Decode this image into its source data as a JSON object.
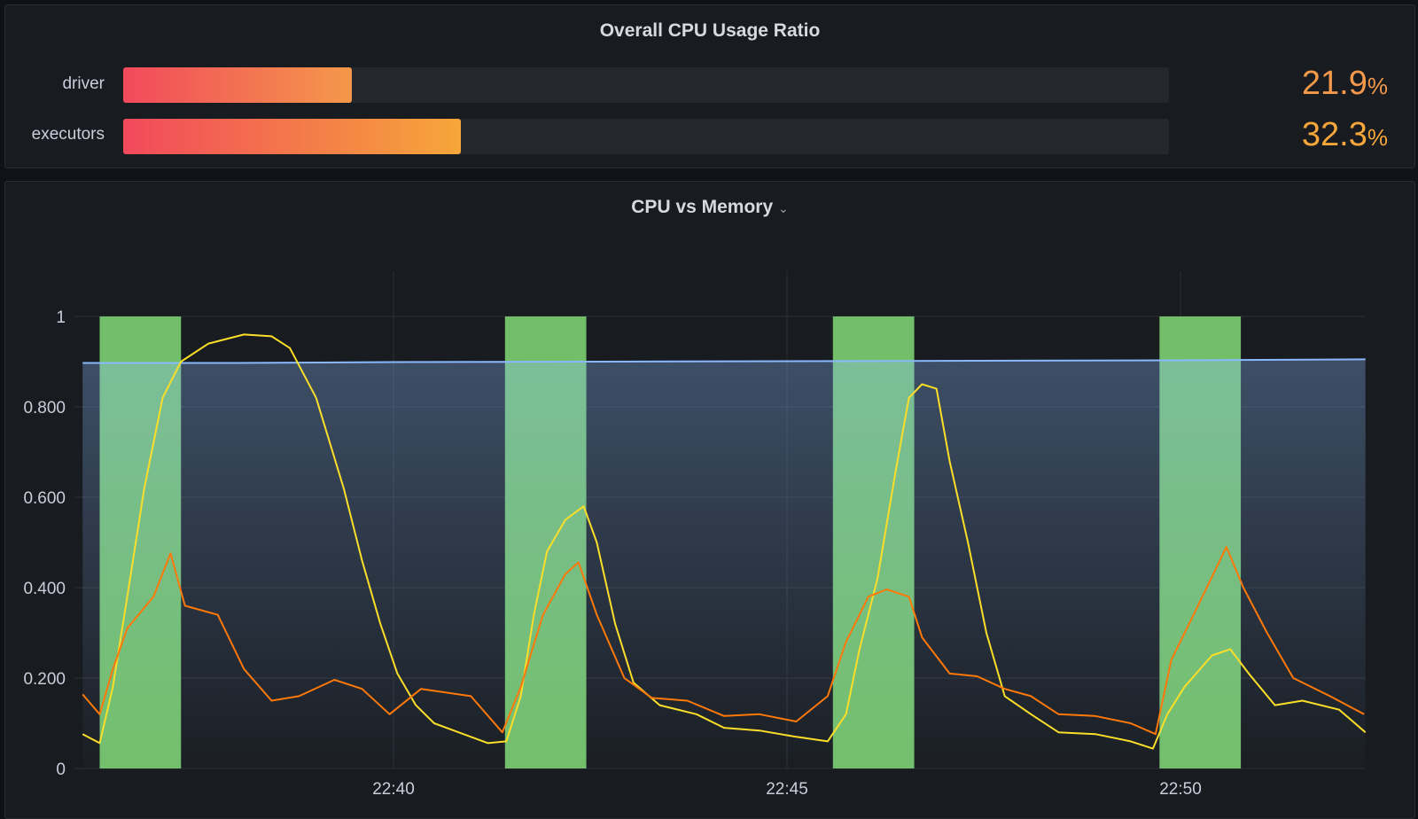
{
  "top_panel": {
    "title": "Overall CPU Usage Ratio",
    "bars": [
      {
        "label": "driver",
        "value": "21.9",
        "unit": "%",
        "fraction": 0.219,
        "color": "#f4984a"
      },
      {
        "label": "executors",
        "value": "32.3",
        "unit": "%",
        "fraction": 0.323,
        "color": "#f6a63a"
      }
    ],
    "gradient_start": "#f2495c"
  },
  "chart_panel": {
    "title": "CPU vs Memory",
    "menu_icon": "chevron-down-icon"
  },
  "chart_data": {
    "type": "line",
    "title": "CPU vs Memory",
    "ylim": [
      0,
      1
    ],
    "yticks": [
      "0",
      "0.200",
      "0.400",
      "0.600",
      "0.800",
      "1"
    ],
    "xticks": [
      "22:40",
      "22:45",
      "22:50"
    ],
    "xlim": [
      "22:36:03",
      "22:52:21"
    ],
    "grid": true,
    "legend": "none",
    "time_regions": [
      {
        "from": "22:36:16",
        "to": "22:37:18",
        "color": "#73bf69"
      },
      {
        "from": "22:41:25",
        "to": "22:42:27",
        "color": "#73bf69"
      },
      {
        "from": "22:45:35",
        "to": "22:46:37",
        "color": "#73bf69"
      },
      {
        "from": "22:49:44",
        "to": "22:50:46",
        "color": "#73bf69"
      }
    ],
    "series": [
      {
        "color": "#8ab8ff",
        "fill": true,
        "points": [
          [
            "22:36:03",
            0.897
          ],
          [
            "22:38:00",
            0.897
          ],
          [
            "22:40:00",
            0.899
          ],
          [
            "22:45:00",
            0.901
          ],
          [
            "22:50:00",
            0.903
          ],
          [
            "22:52:21",
            0.905
          ]
        ]
      },
      {
        "color": "#fade2a",
        "points": [
          [
            "22:36:03",
            0.076
          ],
          [
            "22:36:16",
            0.056
          ],
          [
            "22:36:26",
            0.18
          ],
          [
            "22:36:37",
            0.38
          ],
          [
            "22:36:50",
            0.62
          ],
          [
            "22:37:04",
            0.82
          ],
          [
            "22:37:18",
            0.9
          ],
          [
            "22:37:39",
            0.94
          ],
          [
            "22:38:06",
            0.96
          ],
          [
            "22:38:27",
            0.956
          ],
          [
            "22:38:41",
            0.93
          ],
          [
            "22:39:01",
            0.82
          ],
          [
            "22:39:22",
            0.62
          ],
          [
            "22:39:36",
            0.46
          ],
          [
            "22:39:50",
            0.32
          ],
          [
            "22:40:03",
            0.21
          ],
          [
            "22:40:17",
            0.14
          ],
          [
            "22:40:31",
            0.1
          ],
          [
            "22:40:59",
            0.07
          ],
          [
            "22:41:12",
            0.056
          ],
          [
            "22:41:26",
            0.06
          ],
          [
            "22:41:37",
            0.16
          ],
          [
            "22:41:47",
            0.34
          ],
          [
            "22:41:57",
            0.48
          ],
          [
            "22:42:11",
            0.55
          ],
          [
            "22:42:25",
            0.58
          ],
          [
            "22:42:35",
            0.5
          ],
          [
            "22:42:49",
            0.32
          ],
          [
            "22:43:03",
            0.19
          ],
          [
            "22:43:23",
            0.14
          ],
          [
            "22:43:51",
            0.12
          ],
          [
            "22:44:12",
            0.09
          ],
          [
            "22:44:39",
            0.084
          ],
          [
            "22:45:07",
            0.07
          ],
          [
            "22:45:31",
            0.06
          ],
          [
            "22:45:45",
            0.12
          ],
          [
            "22:45:55",
            0.26
          ],
          [
            "22:46:09",
            0.42
          ],
          [
            "22:46:23",
            0.66
          ],
          [
            "22:46:33",
            0.82
          ],
          [
            "22:46:43",
            0.85
          ],
          [
            "22:46:54",
            0.84
          ],
          [
            "22:47:04",
            0.68
          ],
          [
            "22:47:18",
            0.5
          ],
          [
            "22:47:32",
            0.3
          ],
          [
            "22:47:46",
            0.16
          ],
          [
            "22:48:06",
            0.12
          ],
          [
            "22:48:27",
            0.08
          ],
          [
            "22:48:55",
            0.076
          ],
          [
            "22:49:22",
            0.06
          ],
          [
            "22:49:39",
            0.044
          ],
          [
            "22:49:50",
            0.12
          ],
          [
            "22:50:03",
            0.18
          ],
          [
            "22:50:24",
            0.25
          ],
          [
            "22:50:38",
            0.264
          ],
          [
            "22:50:52",
            0.21
          ],
          [
            "22:51:12",
            0.14
          ],
          [
            "22:51:33",
            0.15
          ],
          [
            "22:52:01",
            0.13
          ],
          [
            "22:52:21",
            0.08
          ]
        ]
      },
      {
        "color": "#ff780a",
        "points": [
          [
            "22:36:03",
            0.164
          ],
          [
            "22:36:16",
            0.12
          ],
          [
            "22:36:26",
            0.22
          ],
          [
            "22:36:37",
            0.31
          ],
          [
            "22:36:57",
            0.38
          ],
          [
            "22:37:10",
            0.476
          ],
          [
            "22:37:21",
            0.36
          ],
          [
            "22:37:46",
            0.34
          ],
          [
            "22:38:06",
            0.22
          ],
          [
            "22:38:27",
            0.15
          ],
          [
            "22:38:48",
            0.16
          ],
          [
            "22:39:15",
            0.196
          ],
          [
            "22:39:36",
            0.176
          ],
          [
            "22:39:57",
            0.12
          ],
          [
            "22:40:21",
            0.176
          ],
          [
            "22:40:59",
            0.16
          ],
          [
            "22:41:23",
            0.08
          ],
          [
            "22:41:37",
            0.18
          ],
          [
            "22:41:54",
            0.34
          ],
          [
            "22:42:11",
            0.43
          ],
          [
            "22:42:21",
            0.456
          ],
          [
            "22:42:35",
            0.34
          ],
          [
            "22:42:56",
            0.2
          ],
          [
            "22:43:17",
            0.156
          ],
          [
            "22:43:44",
            0.15
          ],
          [
            "22:44:12",
            0.116
          ],
          [
            "22:44:39",
            0.12
          ],
          [
            "22:45:07",
            0.104
          ],
          [
            "22:45:31",
            0.16
          ],
          [
            "22:45:45",
            0.28
          ],
          [
            "22:46:02",
            0.38
          ],
          [
            "22:46:16",
            0.396
          ],
          [
            "22:46:33",
            0.38
          ],
          [
            "22:46:43",
            0.29
          ],
          [
            "22:47:04",
            0.21
          ],
          [
            "22:47:25",
            0.204
          ],
          [
            "22:47:46",
            0.176
          ],
          [
            "22:48:06",
            0.16
          ],
          [
            "22:48:27",
            0.12
          ],
          [
            "22:48:55",
            0.116
          ],
          [
            "22:49:22",
            0.1
          ],
          [
            "22:49:41",
            0.076
          ],
          [
            "22:49:53",
            0.24
          ],
          [
            "22:50:10",
            0.34
          ],
          [
            "22:50:35",
            0.49
          ],
          [
            "22:50:48",
            0.4
          ],
          [
            "22:51:06",
            0.3
          ],
          [
            "22:51:26",
            0.2
          ],
          [
            "22:51:54",
            0.16
          ],
          [
            "22:52:20",
            0.12
          ]
        ]
      }
    ]
  }
}
